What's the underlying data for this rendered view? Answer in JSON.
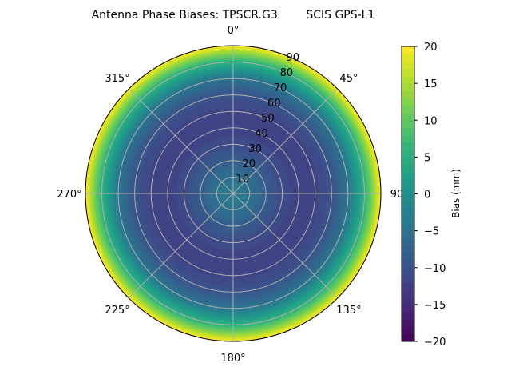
{
  "chart_data": {
    "type": "heatmap",
    "projection": "polar",
    "title": "Antenna Phase Biases: TPSCR.G3        SCIS GPS-L1",
    "angle_ticks": [
      "0°",
      "45°",
      "90",
      "135°",
      "180°",
      "225°",
      "270°",
      "315°"
    ],
    "radial_ticks": [
      "10",
      "20",
      "30",
      "40",
      "50",
      "60",
      "70",
      "80",
      "90"
    ],
    "radial_range": [
      0,
      90
    ],
    "angle_direction": "clockwise, 0° at top",
    "grid": true,
    "zenith_profile": {
      "zenith_deg": [
        0,
        10,
        20,
        30,
        40,
        50,
        60,
        70,
        80,
        85,
        90
      ],
      "bias_mm": [
        -3,
        -5,
        -8,
        -11,
        -12,
        -12,
        -10,
        -5,
        5,
        12,
        20
      ]
    },
    "colorbar": {
      "label": "Bias (mm)",
      "range": [
        -20,
        20
      ],
      "ticks": [
        "20",
        "15",
        "10",
        "5",
        "0",
        "−5",
        "−10",
        "−15",
        "−20"
      ],
      "colormap": "viridis"
    }
  }
}
